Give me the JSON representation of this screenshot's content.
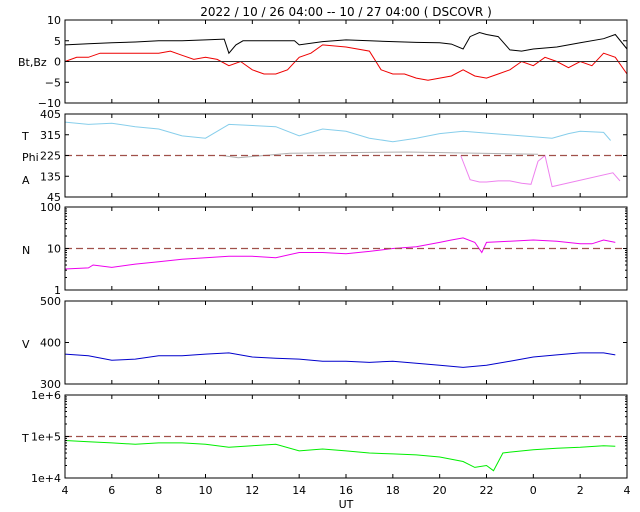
{
  "chart_data": {
    "type": "line",
    "title": "2022 / 10 / 26   04:00 -- 10 / 27   04:00 ( DSCOVR )",
    "xlabel": "UT",
    "x_ticks": [
      "4",
      "6",
      "8",
      "10",
      "12",
      "14",
      "16",
      "18",
      "20",
      "22",
      "0",
      "2",
      "4"
    ],
    "x_hours": [
      4,
      6,
      8,
      10,
      12,
      14,
      16,
      18,
      20,
      22,
      24,
      26,
      28
    ],
    "xlim": [
      4,
      28
    ],
    "panels": [
      {
        "name": "mag",
        "ylabels": [
          "Bt,Bz"
        ],
        "ylim": [
          -10,
          10
        ],
        "ticks": [
          "10",
          "5",
          "0",
          "−5",
          "−10"
        ],
        "tick_values": [
          10,
          5,
          0,
          -5,
          -10
        ],
        "hline": 0,
        "hline_style": "solid",
        "series": [
          {
            "name": "Bt",
            "color": "#000000",
            "x": [
              4,
              5,
              6,
              7,
              8,
              9,
              10,
              10.8,
              11,
              11.3,
              11.6,
              12,
              13,
              13.8,
              14,
              15,
              16,
              17,
              18,
              19,
              20,
              20.5,
              21,
              21.3,
              21.7,
              22,
              22.5,
              23,
              23.5,
              24,
              25,
              26,
              27,
              27.5,
              28
            ],
            "y": [
              4,
              4.3,
              4.5,
              4.7,
              5,
              5,
              5.2,
              5.4,
              2,
              4,
              5,
              5,
              5,
              5,
              4,
              4.8,
              5.2,
              5,
              4.8,
              4.6,
              4.5,
              4.2,
              3,
              6,
              7,
              6.5,
              6,
              2.8,
              2.5,
              3,
              3.5,
              4.5,
              5.5,
              6.5,
              3
            ]
          },
          {
            "name": "Bz",
            "color": "#ee0000",
            "x": [
              4,
              4.5,
              5,
              5.5,
              6,
              7,
              8,
              8.5,
              9,
              9.5,
              10,
              10.5,
              11,
              11.5,
              12,
              12.5,
              13,
              13.5,
              14,
              14.5,
              15,
              16,
              17,
              17.5,
              18,
              18.5,
              19,
              19.5,
              20,
              20.5,
              21,
              21.5,
              22,
              22.5,
              23,
              23.5,
              24,
              24.5,
              25,
              25.5,
              26,
              26.5,
              27,
              27.5,
              28
            ],
            "y": [
              0,
              1,
              1,
              2,
              2,
              2,
              2,
              2.5,
              1.5,
              0.5,
              1,
              0.5,
              -1,
              0,
              -2,
              -3,
              -3,
              -2,
              1,
              2,
              4,
              3.5,
              2.5,
              -2,
              -3,
              -3,
              -4,
              -4.5,
              -4,
              -3.5,
              -2,
              -3.5,
              -4,
              -3,
              -2,
              0,
              -1,
              1,
              0,
              -1.5,
              0,
              -1,
              2,
              1,
              -3
            ]
          }
        ]
      },
      {
        "name": "angle",
        "ylabels": [
          "T",
          "Phi",
          "A"
        ],
        "ylim": [
          45,
          405
        ],
        "ticks": [
          "405",
          "315",
          "225",
          "135",
          "45"
        ],
        "tick_values": [
          405,
          315,
          225,
          135,
          45
        ],
        "hline": 225,
        "hline_style": "dashed",
        "series": [
          {
            "name": "",
            "color": "#87ceeb",
            "x": [
              4,
              5,
              6,
              7,
              8,
              9,
              10,
              11,
              12,
              13,
              14,
              15,
              16,
              17,
              18,
              19,
              20,
              21,
              24.8,
              25.5,
              26,
              27,
              27.3
            ],
            "y": [
              370,
              360,
              365,
              350,
              340,
              310,
              300,
              360,
              355,
              350,
              310,
              340,
              330,
              300,
              285,
              300,
              320,
              330,
              300,
              320,
              330,
              325,
              290
            ]
          },
          {
            "name": "",
            "color": "#ee82ee",
            "x": [
              20.9,
              21.3,
              21.7,
              22,
              22.5,
              23,
              23.5,
              23.9,
              24.2,
              24.5,
              24.8,
              27.4,
              27.7
            ],
            "y": [
              225,
              120,
              110,
              110,
              115,
              115,
              105,
              100,
              200,
              225,
              90,
              150,
              115
            ]
          },
          {
            "name": "",
            "color": "#b0b0b0",
            "x": [
              10.7,
              11.4,
              13.6,
              18.6,
              24.2
            ],
            "y": [
              225,
              215,
              235,
              240,
              230
            ]
          }
        ]
      },
      {
        "name": "density",
        "ylabels": [
          "N"
        ],
        "ylim": [
          1,
          100
        ],
        "log": true,
        "ticks": [
          "100",
          "10",
          "1"
        ],
        "tick_values": [
          100,
          10,
          1
        ],
        "hline": 10,
        "hline_style": "dashed",
        "series": [
          {
            "name": "",
            "color": "#ee00ee",
            "x": [
              4,
              5,
              5.2,
              6,
              7,
              8,
              9,
              10,
              11,
              12,
              13,
              14,
              15,
              16,
              17,
              18,
              19,
              20,
              20.5,
              21,
              21.5,
              21.8,
              22,
              23,
              24,
              25,
              26,
              26.5,
              27,
              27.5
            ],
            "y": [
              3.2,
              3.4,
              4,
              3.5,
              4.2,
              4.8,
              5.5,
              6,
              6.5,
              6.5,
              6,
              8,
              8,
              7.5,
              8.5,
              10,
              11,
              14,
              16,
              18,
              14,
              8,
              14,
              15,
              16,
              15,
              13,
              13,
              16,
              14
            ]
          }
        ]
      },
      {
        "name": "velocity",
        "ylabels": [
          "V"
        ],
        "ylim": [
          300,
          500
        ],
        "ticks": [
          "500",
          "400",
          "300"
        ],
        "tick_values": [
          500,
          400,
          300
        ],
        "series": [
          {
            "name": "",
            "color": "#0000cc",
            "x": [
              4,
              5,
              6,
              7,
              8,
              9,
              10,
              11,
              12,
              13,
              14,
              15,
              16,
              17,
              18,
              19,
              20,
              21,
              22,
              23,
              24,
              25,
              26,
              27,
              27.5
            ],
            "y": [
              372,
              368,
              357,
              360,
              368,
              368,
              372,
              375,
              365,
              362,
              360,
              355,
              355,
              352,
              355,
              350,
              345,
              340,
              345,
              355,
              365,
              370,
              375,
              375,
              370
            ]
          }
        ]
      },
      {
        "name": "temperature",
        "ylabels": [
          "T"
        ],
        "ylim": [
          10000,
          1000000
        ],
        "log": true,
        "ticks": [
          "1e+6",
          "1e+5",
          "1e+4"
        ],
        "tick_values": [
          1000000,
          100000,
          10000
        ],
        "hline": 100000,
        "hline_style": "dashed",
        "series": [
          {
            "name": "",
            "color": "#00ee00",
            "x": [
              4,
              5,
              6,
              7,
              8,
              9,
              10,
              11,
              12,
              13,
              14,
              15,
              16,
              17,
              18,
              19,
              20,
              21,
              21.5,
              22,
              22.3,
              22.7,
              23,
              24,
              25,
              26,
              27,
              27.5
            ],
            "y": [
              80000,
              75000,
              70000,
              65000,
              70000,
              70000,
              65000,
              55000,
              60000,
              65000,
              45000,
              50000,
              45000,
              40000,
              38000,
              36000,
              32000,
              25000,
              18000,
              20000,
              15000,
              40000,
              42000,
              48000,
              52000,
              55000,
              60000,
              58000
            ]
          }
        ]
      }
    ]
  }
}
